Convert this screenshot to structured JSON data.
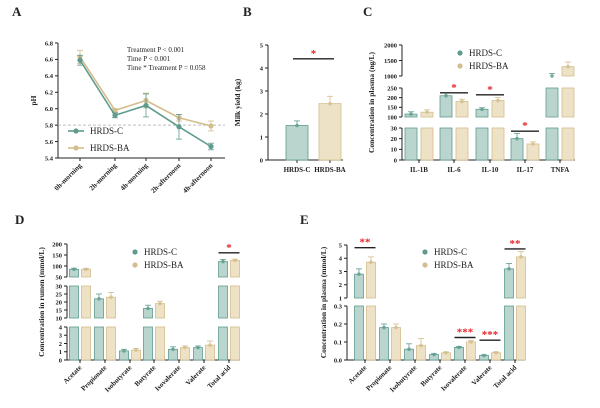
{
  "colors": {
    "C_line": "#5f9c8e",
    "C_fill": "#b9d5cd",
    "BA_line": "#d3bd8c",
    "BA_fill": "#eee2c6",
    "sig": "#e8242b",
    "ref": "#bdbdbd"
  },
  "legend": {
    "c": "HRDS-C",
    "ba": "HRDS-BA"
  },
  "chart_data": [
    {
      "id": "A",
      "panel_label": "A",
      "type": "line",
      "ylabel": "pH",
      "ylim": [
        5.4,
        6.8
      ],
      "yticks": [
        "5.4",
        "5.6",
        "5.8",
        "6.0",
        "6.2",
        "6.4",
        "6.6",
        "6.8"
      ],
      "categories": [
        "0h-morning",
        "2h-morning",
        "4h-morning",
        "2h-afternoon",
        "4h-afternoon"
      ],
      "reference_line": 5.8,
      "annotations": [
        "Treatment P < 0.001",
        "Time P < 0.001",
        "Time * Treatment P = 0.058"
      ],
      "series": [
        {
          "name": "HRDS-C",
          "values": [
            6.59,
            5.92,
            6.04,
            5.78,
            5.54
          ],
          "err": [
            0.06,
            0.03,
            0.14,
            0.15,
            0.04
          ]
        },
        {
          "name": "HRDS-BA",
          "values": [
            6.63,
            5.98,
            6.1,
            5.89,
            5.79
          ],
          "err": [
            0.08,
            0.02,
            0.09,
            0.04,
            0.06
          ]
        }
      ]
    },
    {
      "id": "B",
      "panel_label": "B",
      "type": "bar",
      "ylabel": "Milk yield (kg)",
      "ylim": [
        0,
        5
      ],
      "yticks": [
        "0",
        "1",
        "2",
        "3",
        "4",
        "5"
      ],
      "categories": [
        "HRDS-C",
        "HRDS-BA"
      ],
      "values": [
        1.5,
        2.45
      ],
      "err": [
        0.2,
        0.32
      ],
      "sig": [
        {
          "label": "*",
          "level": 4.4
        }
      ]
    },
    {
      "id": "C",
      "panel_label": "C",
      "type": "bar",
      "ylabel": "Concentration in plasma (ng/L)",
      "segments": [
        {
          "range": [
            0,
            30
          ],
          "ticks": [
            "0",
            "10",
            "20",
            "30"
          ]
        },
        {
          "range": [
            100,
            250
          ],
          "ticks": [
            "100",
            "150",
            "200",
            "250"
          ]
        },
        {
          "range": [
            1000,
            2000
          ],
          "ticks": [
            "1000",
            "1500",
            "2000"
          ]
        }
      ],
      "categories": [
        "IL-1B",
        "IL-6",
        "IL-10",
        "IL-17",
        "TNFA"
      ],
      "series": [
        {
          "name": "HRDS-C",
          "values": [
            115,
            210,
            140,
            20,
            1000
          ],
          "err": [
            12,
            15,
            8,
            5,
            80
          ]
        },
        {
          "name": "HRDS-BA",
          "values": [
            125,
            180,
            185,
            15,
            1300
          ],
          "err": [
            12,
            12,
            15,
            2,
            150
          ]
        }
      ],
      "sig": [
        {
          "category": "IL-6",
          "label": "*",
          "level": 225
        },
        {
          "category": "IL-10",
          "label": "*",
          "level": 215
        },
        {
          "category": "IL-17",
          "label": "*",
          "level": 27
        }
      ]
    },
    {
      "id": "D",
      "panel_label": "D",
      "type": "bar",
      "ylabel": "Concentration in rumen (mmol/L)",
      "segments": [
        {
          "range": [
            0,
            4
          ],
          "ticks": [
            "0",
            "1",
            "2",
            "3",
            "4"
          ]
        },
        {
          "range": [
            10,
            30
          ],
          "ticks": [
            "10",
            "15",
            "20",
            "25",
            "30"
          ]
        },
        {
          "range": [
            50,
            200
          ],
          "ticks": [
            "50",
            "100",
            "150",
            "200"
          ]
        }
      ],
      "categories": [
        "Acetate",
        "Propionate",
        "Isobutyrate",
        "Butyrate",
        "Isovalerate",
        "Valerate",
        "Total acid"
      ],
      "series": [
        {
          "name": "HRDS-C",
          "values": [
            85,
            22,
            1.1,
            16,
            1.3,
            1.5,
            120
          ],
          "err": [
            5,
            3,
            0.2,
            2,
            0.3,
            0.2,
            10
          ]
        },
        {
          "name": "HRDS-BA",
          "values": [
            85,
            23,
            1.2,
            19,
            1.5,
            1.8,
            125
          ],
          "err": [
            4,
            3,
            0.2,
            1.5,
            0.2,
            0.5,
            6
          ]
        }
      ],
      "sig": [
        {
          "category": "Total acid",
          "label": "*",
          "level": 160
        }
      ]
    },
    {
      "id": "E",
      "panel_label": "E",
      "type": "bar",
      "ylabel": "Concentration in plasma (mmol/L)",
      "segments": [
        {
          "range": [
            0,
            0.3
          ],
          "ticks": [
            "0.0",
            "0.1",
            "0.2",
            "0.3"
          ]
        },
        {
          "range": [
            1,
            5
          ],
          "ticks": [
            "1",
            "2",
            "3",
            "4",
            "5"
          ]
        }
      ],
      "categories": [
        "Acetate",
        "Propionate",
        "Isobutyrate",
        "Butyrate",
        "Isovalerate",
        "Valerate",
        "Total acid"
      ],
      "series": [
        {
          "name": "HRDS-C",
          "values": [
            2.8,
            0.18,
            0.06,
            0.03,
            0.07,
            0.025,
            3.2
          ],
          "err": [
            0.4,
            0.02,
            0.03,
            0.005,
            0.005,
            0.004,
            0.4
          ]
        },
        {
          "name": "HRDS-BA",
          "values": [
            3.7,
            0.18,
            0.08,
            0.04,
            0.1,
            0.04,
            4.1
          ],
          "err": [
            0.4,
            0.02,
            0.04,
            0.005,
            0.008,
            0.005,
            0.4
          ]
        }
      ],
      "sig": [
        {
          "category": "Acetate",
          "label": "**",
          "level": 4.8
        },
        {
          "category": "Isovalerate",
          "label": "***",
          "level": 0.125
        },
        {
          "category": "Valerate",
          "label": "***",
          "level": 0.11
        },
        {
          "category": "Total acid",
          "label": "**",
          "level": 4.7
        }
      ]
    }
  ]
}
